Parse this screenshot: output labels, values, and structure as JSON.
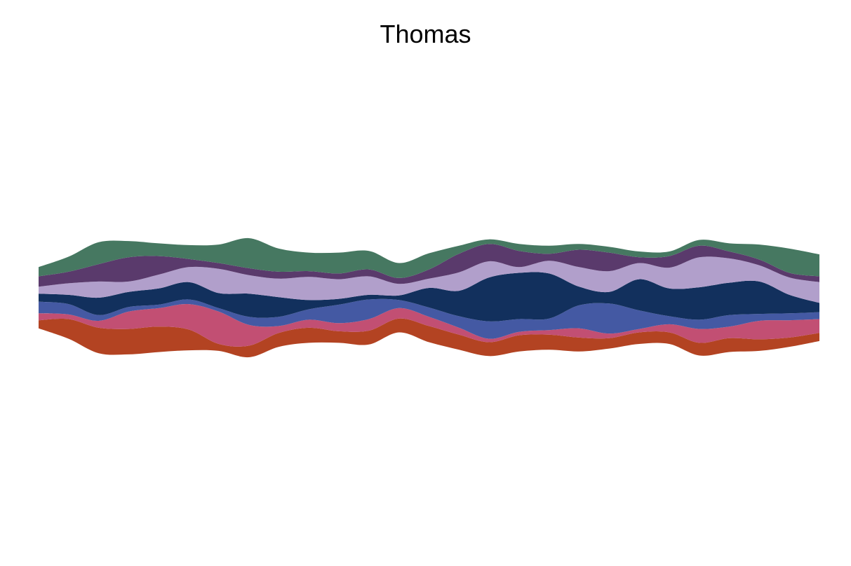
{
  "chart_data": {
    "type": "area",
    "subtype": "streamgraph",
    "title": "Thomas",
    "xlabel": "",
    "ylabel": "",
    "axes_visible": false,
    "grid": false,
    "legend": "none",
    "x": [
      0,
      1,
      2,
      3,
      4,
      5,
      6,
      7,
      8,
      9,
      10,
      11,
      12,
      13,
      14,
      15,
      16,
      17,
      18,
      19,
      20,
      21,
      22,
      23,
      24,
      25,
      26
    ],
    "series": [
      {
        "color": "#B34322",
        "values": [
          0.7,
          1.7,
          2.2,
          2.2,
          2.2,
          1.8,
          0.6,
          1.0,
          1.2,
          1.3,
          1.0,
          1.2,
          1.2,
          1.4,
          1.3,
          1.2,
          1.4,
          1.3,
          1.2,
          0.9,
          1.0,
          1.0,
          1.1,
          1.2,
          1.0,
          0.8,
          0.7
        ]
      },
      {
        "color": "#C24F73",
        "values": [
          0.6,
          0.4,
          0.6,
          1.5,
          1.6,
          2.2,
          2.8,
          1.8,
          0.6,
          0.7,
          0.7,
          1.0,
          0.9,
          0.8,
          0.6,
          0.3,
          0.3,
          0.4,
          0.8,
          0.4,
          0.3,
          0.7,
          1.2,
          1.0,
          1.6,
          1.5,
          1.2
        ]
      },
      {
        "color": "#4459A3",
        "values": [
          1.0,
          0.9,
          0.5,
          0.4,
          0.3,
          0.4,
          0.3,
          0.7,
          0.8,
          0.9,
          1.6,
          1.7,
          0.7,
          0.8,
          1.0,
          1.5,
          1.1,
          1.0,
          2.0,
          2.6,
          1.6,
          0.7,
          0.8,
          1.0,
          0.6,
          0.6,
          0.6
        ]
      },
      {
        "color": "#12305D",
        "values": [
          0.7,
          0.8,
          1.5,
          1.3,
          1.4,
          1.5,
          1.3,
          2.0,
          1.7,
          0.8,
          0.5,
          0.4,
          0.4,
          1.7,
          2.2,
          3.8,
          4.0,
          3.9,
          1.6,
          1.0,
          2.7,
          2.4,
          2.8,
          2.8,
          2.8,
          1.6,
          0.8
        ]
      },
      {
        "color": "#B19FCB",
        "values": [
          0.6,
          1.0,
          1.4,
          0.9,
          1.2,
          1.3,
          2.1,
          1.6,
          1.6,
          2.0,
          1.7,
          1.6,
          1.0,
          0.8,
          1.6,
          1.4,
          0.5,
          1.1,
          1.7,
          1.8,
          1.4,
          1.8,
          2.6,
          2.1,
          1.4,
          1.5,
          1.8
        ]
      },
      {
        "color": "#5A3A6C",
        "values": [
          0.9,
          1.0,
          1.5,
          2.1,
          1.6,
          0.7,
          0.5,
          0.6,
          0.6,
          0.5,
          0.5,
          0.6,
          0.5,
          0.8,
          1.6,
          1.5,
          1.4,
          0.6,
          1.5,
          1.6,
          0.5,
          1.0,
          1.0,
          0.6,
          0.5,
          0.4,
          0.5
        ]
      },
      {
        "color": "#467861",
        "values": [
          0.8,
          1.3,
          1.9,
          1.4,
          1.1,
          1.2,
          1.6,
          2.6,
          2.0,
          1.6,
          1.8,
          1.6,
          1.3,
          1.4,
          0.7,
          0.4,
          0.6,
          0.7,
          0.5,
          0.5,
          0.5,
          0.4,
          0.5,
          0.7,
          1.3,
          2.1,
          1.9
        ]
      }
    ]
  }
}
